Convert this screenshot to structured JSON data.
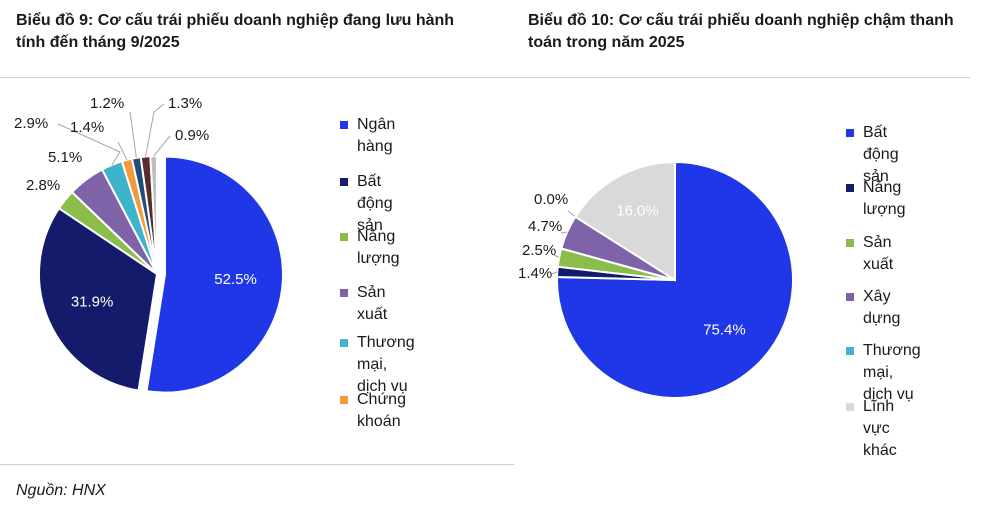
{
  "chart1": {
    "title": "Biểu đồ 9: Cơ cấu trái phiếu doanh nghiệp đang lưu hành tính đến tháng 9/2025",
    "legend": [
      {
        "label": "Ngân hàng",
        "color": "#1f37e6"
      },
      {
        "label": "Bất động sản",
        "color": "#141b6b"
      },
      {
        "label": "Năng lượng",
        "color": "#8bbd4a"
      },
      {
        "label": "Sản xuất",
        "color": "#7f63a8"
      },
      {
        "label": "Thương mại,\ndịch vụ",
        "color": "#3fb3c9"
      },
      {
        "label": "Chứng khoán",
        "color": "#f39a3c"
      }
    ]
  },
  "chart2": {
    "title": "Biểu đồ 10: Cơ cấu trái phiếu doanh nghiệp chậm thanh toán trong năm 2025",
    "legend": [
      {
        "label": "Bất động sản",
        "color": "#1f37e6"
      },
      {
        "label": "Năng lượng",
        "color": "#141b6b"
      },
      {
        "label": "Sản xuất",
        "color": "#8bbd4a"
      },
      {
        "label": "Xây dựng",
        "color": "#7f63a8"
      },
      {
        "label": "Thương mại,\ndịch vụ",
        "color": "#3fb3c9"
      },
      {
        "label": "Lĩnh vực khác",
        "color": "#d9d9d9"
      }
    ]
  },
  "chart_data": [
    {
      "type": "pie",
      "title": "Biểu đồ 9: Cơ cấu trái phiếu doanh nghiệp đang lưu hành tính đến tháng 9/2025",
      "legend_position": "right",
      "slices": [
        {
          "value": 52.5,
          "label": "52.5%",
          "color": "#1f37e6"
        },
        {
          "value": 31.9,
          "label": "31.9%",
          "color": "#141b6b"
        },
        {
          "value": 2.8,
          "label": "2.8%",
          "color": "#8bbd4a"
        },
        {
          "value": 5.1,
          "label": "5.1%",
          "color": "#7f63a8"
        },
        {
          "value": 2.9,
          "label": "2.9%",
          "color": "#3fb3c9"
        },
        {
          "value": 1.4,
          "label": "1.4%",
          "color": "#f39a3c"
        },
        {
          "value": 1.2,
          "label": "1.2%",
          "color": "#1f4e79"
        },
        {
          "value": 1.3,
          "label": "1.3%",
          "color": "#5b2c2c"
        },
        {
          "value": 0.9,
          "label": "0.9%",
          "color": "#bfbfbf"
        }
      ]
    },
    {
      "type": "pie",
      "title": "Biểu đồ 10: Cơ cấu trái phiếu doanh nghiệp chậm thanh toán trong năm 2025",
      "legend_position": "right",
      "slices": [
        {
          "value": 75.4,
          "label": "75.4%",
          "color": "#1f37e6"
        },
        {
          "value": 1.4,
          "label": "1.4%",
          "color": "#141b6b"
        },
        {
          "value": 2.5,
          "label": "2.5%",
          "color": "#8bbd4a"
        },
        {
          "value": 4.7,
          "label": "4.7%",
          "color": "#7f63a8"
        },
        {
          "value": 0.0,
          "label": "0.0%",
          "color": "#3fb3c9"
        },
        {
          "value": 16.0,
          "label": "16.0%",
          "color": "#d9d9d9"
        }
      ]
    }
  ],
  "source": "Nguồn: HNX"
}
